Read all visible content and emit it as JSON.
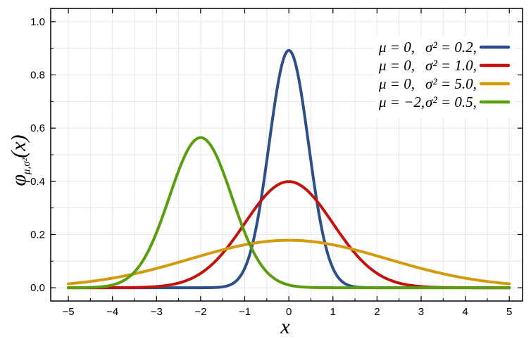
{
  "chart_data": {
    "type": "line",
    "title": "",
    "xlabel": "x",
    "ylabel": "φμ,σ²(x)",
    "ylabel_main": "φ",
    "ylabel_sub": "μ,σ²",
    "ylabel_arg": "(x)",
    "xlim": [
      -5.4,
      5.3
    ],
    "ylim": [
      -0.05,
      1.05
    ],
    "x_ticks": [
      -5,
      -4,
      -3,
      -2,
      -1,
      0,
      1,
      2,
      3,
      4,
      5
    ],
    "x_tick_labels": [
      "−5",
      "−4",
      "−3",
      "−2",
      "−1",
      "0",
      "1",
      "2",
      "3",
      "4",
      "5"
    ],
    "y_ticks": [
      0.0,
      0.2,
      0.4,
      0.6,
      0.8,
      1.0
    ],
    "y_tick_labels": [
      "0.0",
      "0.2",
      "0.4",
      "0.6",
      "0.8",
      "1.0"
    ],
    "grid": true,
    "legend_position": "top-right",
    "series": [
      {
        "mu": 0,
        "sigma2": 0.2,
        "color": "#2d4f8a",
        "legend_mu": "μ = 0,",
        "legend_sigma": "σ² = 0.2,"
      },
      {
        "mu": 0,
        "sigma2": 1.0,
        "color": "#c2140f",
        "legend_mu": "μ = 0,",
        "legend_sigma": "σ² = 1.0,"
      },
      {
        "mu": 0,
        "sigma2": 5.0,
        "color": "#d39b0c",
        "legend_mu": "μ = 0,",
        "legend_sigma": "σ² = 5.0,"
      },
      {
        "mu": -2,
        "sigma2": 0.5,
        "color": "#5a9e10",
        "legend_mu": "μ = −2,",
        "legend_sigma": "σ² = 0.5,"
      }
    ]
  }
}
